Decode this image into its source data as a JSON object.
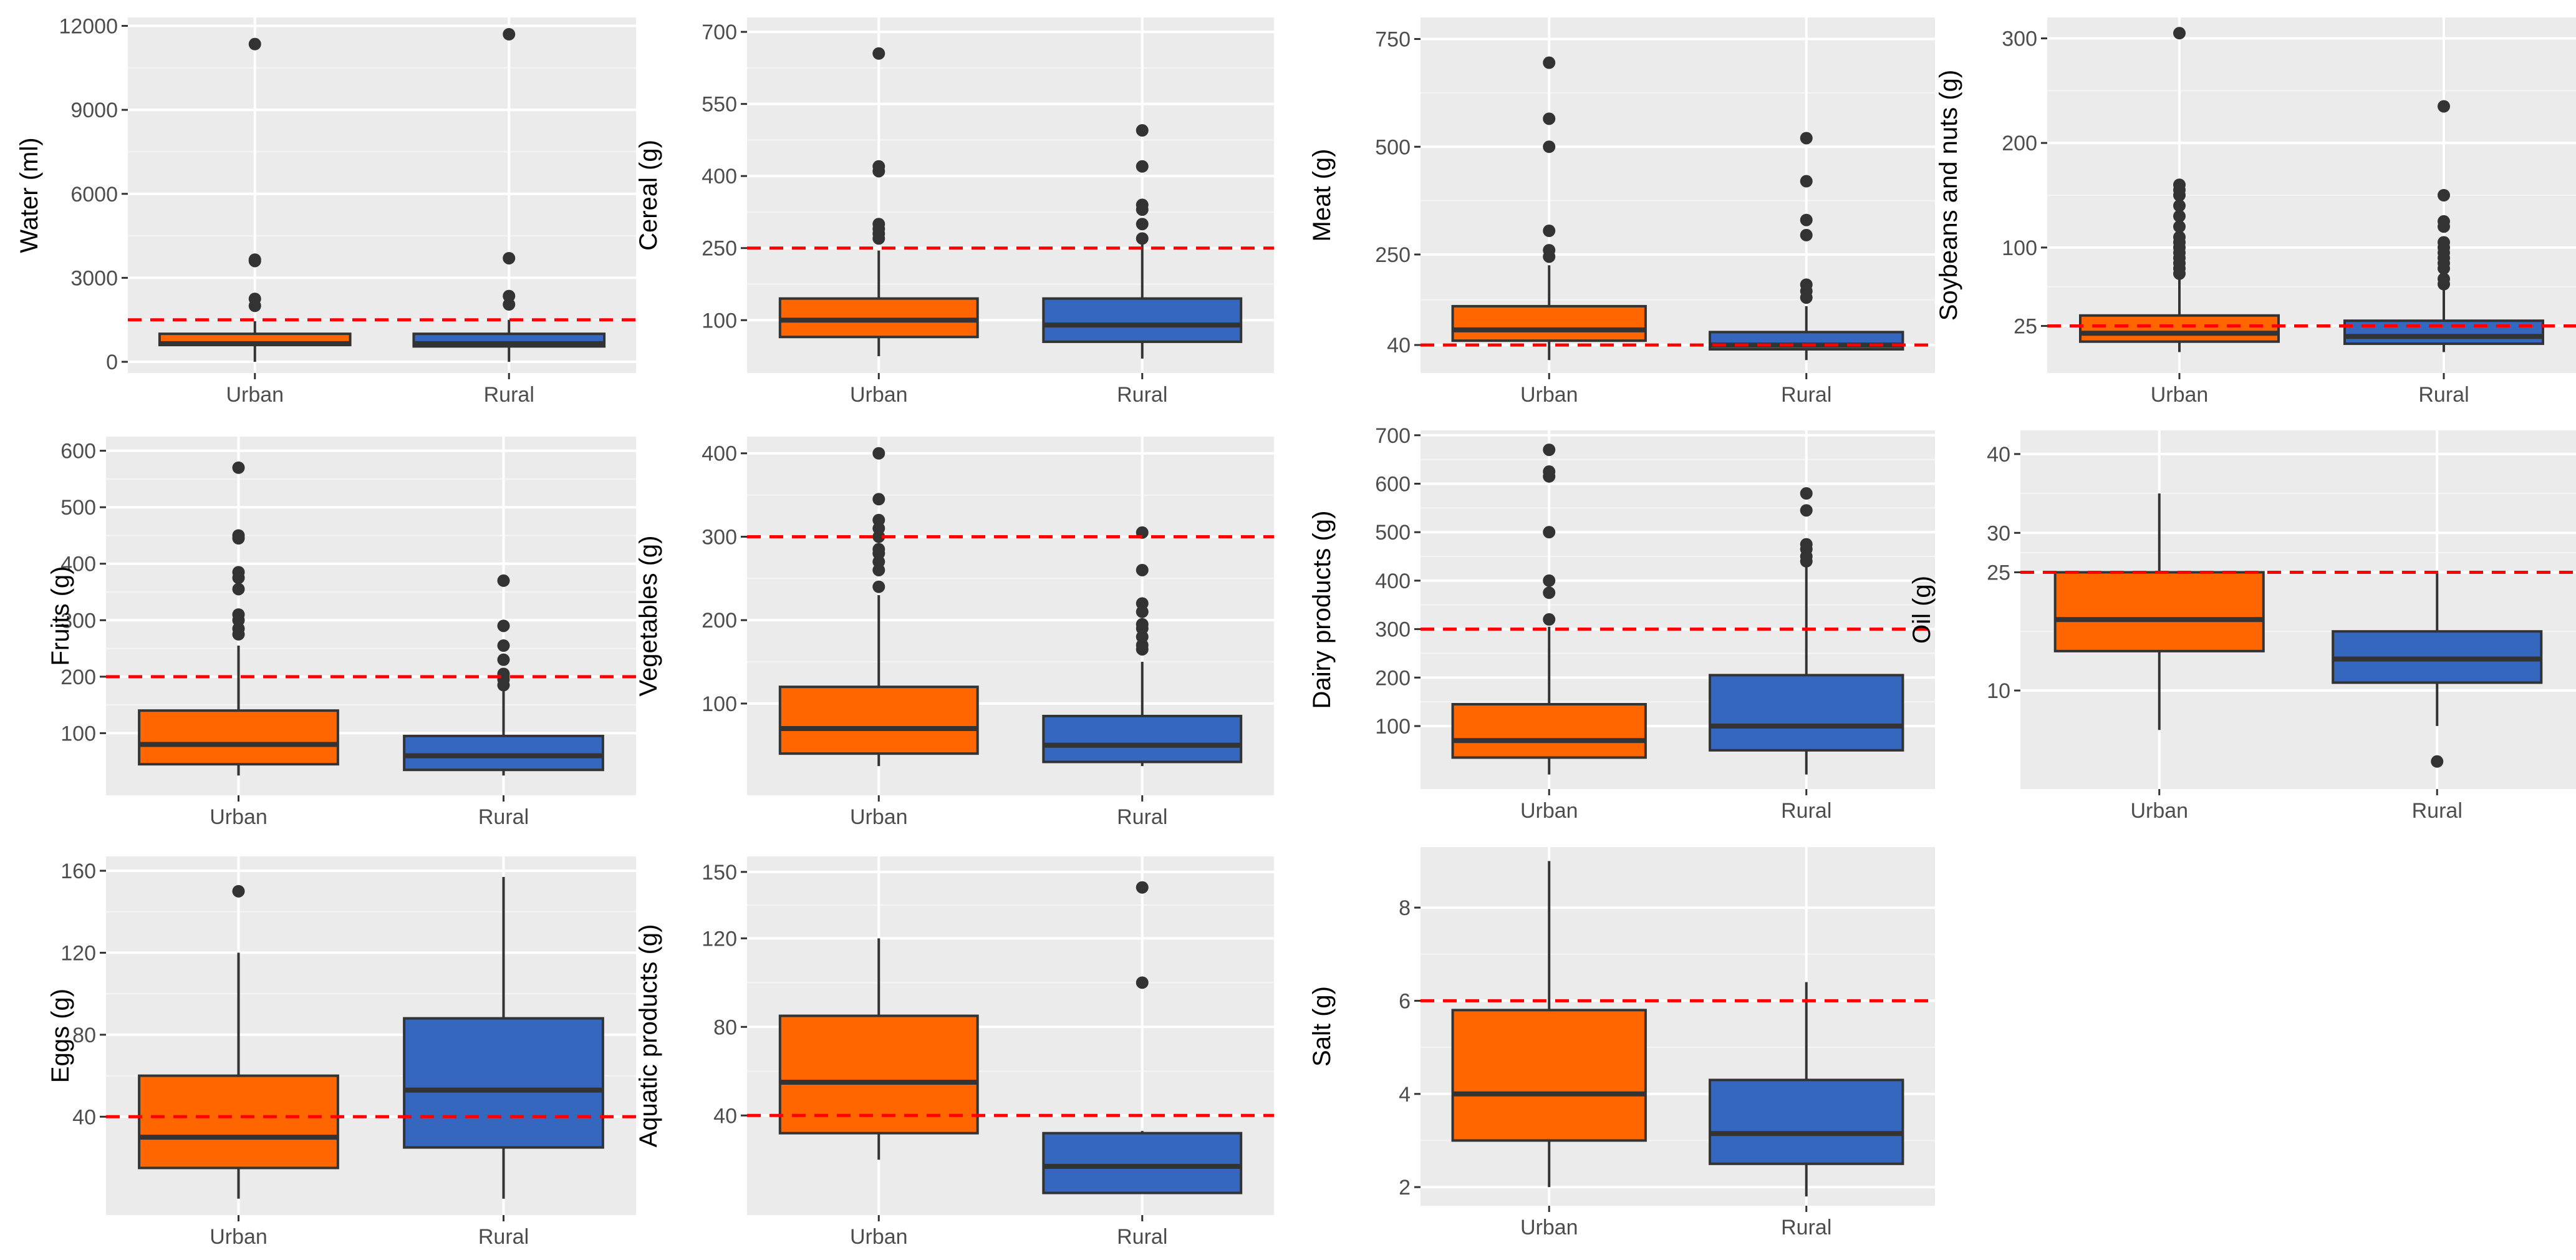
{
  "figure": {
    "colors": {
      "Urban": "#FF6600",
      "Rural": "#3467BD",
      "reference": "#FF0000"
    }
  },
  "chart_data": [
    {
      "type": "box",
      "ylabel": "Water (ml)",
      "categories": [
        "Urban",
        "Rural"
      ],
      "yticks": [
        0,
        3000,
        6000,
        9000,
        12000
      ],
      "yticklabels": [
        "0",
        "3000",
        "6000",
        "9000",
        "12000"
      ],
      "ylim": [
        -400,
        12300
      ],
      "reference": 1500,
      "series": [
        {
          "name": "Urban",
          "min": 0,
          "q1": 600,
          "median": 650,
          "q3": 1000,
          "max": 1450,
          "outliers": [
            2000,
            2250,
            3600,
            3650,
            11350
          ]
        },
        {
          "name": "Rural",
          "min": 0,
          "q1": 550,
          "median": 650,
          "q3": 1000,
          "max": 1500,
          "outliers": [
            2050,
            2350,
            3700,
            11700
          ]
        }
      ]
    },
    {
      "type": "box",
      "ylabel": "Cereal (g)",
      "categories": [
        "Urban",
        "Rural"
      ],
      "yticks": [
        100,
        250,
        400,
        550,
        700
      ],
      "yticklabels": [
        "100",
        "250",
        "400",
        "550",
        "700"
      ],
      "ylim": [
        -10,
        730
      ],
      "reference": 250,
      "series": [
        {
          "name": "Urban",
          "min": 25,
          "q1": 65,
          "median": 100,
          "q3": 145,
          "max": 245,
          "outliers": [
            270,
            280,
            290,
            300,
            410,
            420,
            655
          ]
        },
        {
          "name": "Rural",
          "min": 20,
          "q1": 55,
          "median": 90,
          "q3": 145,
          "max": 260,
          "outliers": [
            270,
            300,
            330,
            340,
            420,
            495
          ]
        }
      ]
    },
    {
      "type": "box",
      "ylabel": "Meat (g)",
      "categories": [
        "Urban",
        "Rural"
      ],
      "yticks": [
        40,
        250,
        500,
        750
      ],
      "yticklabels": [
        "40",
        "250",
        "500",
        "750"
      ],
      "ylim": [
        -25,
        800
      ],
      "reference": 40,
      "series": [
        {
          "name": "Urban",
          "min": 5,
          "q1": 50,
          "median": 75,
          "q3": 130,
          "max": 225,
          "outliers": [
            245,
            260,
            305,
            500,
            565,
            695
          ]
        },
        {
          "name": "Rural",
          "min": 5,
          "q1": 30,
          "median": 40,
          "q3": 70,
          "max": 130,
          "outliers": [
            150,
            165,
            180,
            295,
            330,
            420,
            520
          ]
        }
      ]
    },
    {
      "type": "box",
      "ylabel": "Soybeans and nuts (g)",
      "categories": [
        "Urban",
        "Rural"
      ],
      "yticks": [
        25,
        100,
        200,
        300
      ],
      "yticklabels": [
        "25",
        "100",
        "200",
        "300"
      ],
      "ylim": [
        -20,
        320
      ],
      "reference": 25,
      "series": [
        {
          "name": "Urban",
          "min": 0,
          "q1": 10,
          "median": 18,
          "q3": 35,
          "max": 70,
          "outliers": [
            75,
            80,
            85,
            90,
            95,
            100,
            105,
            110,
            120,
            130,
            140,
            150,
            155,
            160,
            305
          ]
        },
        {
          "name": "Rural",
          "min": 0,
          "q1": 8,
          "median": 15,
          "q3": 30,
          "max": 60,
          "outliers": [
            65,
            70,
            80,
            85,
            90,
            95,
            100,
            105,
            120,
            125,
            150,
            235
          ]
        }
      ]
    },
    {
      "type": "box",
      "ylabel": "Fruits (g)",
      "categories": [
        "Urban",
        "Rural"
      ],
      "yticks": [
        100,
        200,
        300,
        400,
        500,
        600
      ],
      "yticklabels": [
        "100",
        "200",
        "300",
        "400",
        "500",
        "600"
      ],
      "ylim": [
        -10,
        625
      ],
      "reference": 200,
      "series": [
        {
          "name": "Urban",
          "min": 25,
          "q1": 45,
          "median": 80,
          "q3": 140,
          "max": 255,
          "outliers": [
            275,
            285,
            300,
            310,
            355,
            375,
            385,
            445,
            450,
            570
          ]
        },
        {
          "name": "Rural",
          "min": 25,
          "q1": 35,
          "median": 60,
          "q3": 95,
          "max": 175,
          "outliers": [
            185,
            195,
            200,
            205,
            230,
            255,
            290,
            370
          ]
        }
      ]
    },
    {
      "type": "box",
      "ylabel": "Vegetables (g)",
      "categories": [
        "Urban",
        "Rural"
      ],
      "yticks": [
        100,
        200,
        300,
        400
      ],
      "yticklabels": [
        "100",
        "200",
        "300",
        "400"
      ],
      "ylim": [
        -10,
        420
      ],
      "reference": 300,
      "series": [
        {
          "name": "Urban",
          "min": 25,
          "q1": 40,
          "median": 70,
          "q3": 120,
          "max": 230,
          "outliers": [
            240,
            260,
            270,
            280,
            285,
            300,
            310,
            320,
            345,
            400
          ]
        },
        {
          "name": "Rural",
          "min": 25,
          "q1": 30,
          "median": 50,
          "q3": 85,
          "max": 150,
          "outliers": [
            165,
            170,
            180,
            190,
            195,
            210,
            220,
            260,
            305
          ]
        }
      ]
    },
    {
      "type": "box",
      "ylabel": "Dairy products (g)",
      "categories": [
        "Urban",
        "Rural"
      ],
      "yticks": [
        100,
        200,
        300,
        400,
        500,
        600,
        700
      ],
      "yticklabels": [
        "100",
        "200",
        "300",
        "400",
        "500",
        "600",
        "700"
      ],
      "ylim": [
        -30,
        710
      ],
      "reference": 300,
      "series": [
        {
          "name": "Urban",
          "min": 0,
          "q1": 35,
          "median": 70,
          "q3": 145,
          "max": 305,
          "outliers": [
            320,
            375,
            400,
            500,
            615,
            625,
            670
          ]
        },
        {
          "name": "Rural",
          "min": 0,
          "q1": 50,
          "median": 100,
          "q3": 205,
          "max": 430,
          "outliers": [
            440,
            450,
            465,
            475,
            545,
            580
          ]
        }
      ]
    },
    {
      "type": "box",
      "ylabel": "Oil (g)",
      "categories": [
        "Urban",
        "Rural"
      ],
      "yticks": [
        10,
        25,
        30,
        40
      ],
      "yticklabels": [
        "10",
        "25",
        "30",
        "40"
      ],
      "ylim": [
        -2.5,
        43
      ],
      "reference": 25,
      "series": [
        {
          "name": "Urban",
          "min": 5,
          "q1": 15,
          "median": 19,
          "q3": 25,
          "max": 35,
          "outliers": []
        },
        {
          "name": "Rural",
          "min": 5.5,
          "q1": 11,
          "median": 14,
          "q3": 17.5,
          "max": 25,
          "outliers": [
            1
          ]
        }
      ]
    },
    {
      "type": "box",
      "ylabel": "Eggs (g)",
      "categories": [
        "Urban",
        "Rural"
      ],
      "yticks": [
        40,
        80,
        120,
        160
      ],
      "yticklabels": [
        "40",
        "80",
        "120",
        "160"
      ],
      "ylim": [
        -8,
        167
      ],
      "reference": 40,
      "series": [
        {
          "name": "Urban",
          "min": 0,
          "q1": 15,
          "median": 30,
          "q3": 60,
          "max": 120,
          "outliers": [
            150
          ]
        },
        {
          "name": "Rural",
          "min": 0,
          "q1": 25,
          "median": 53,
          "q3": 88,
          "max": 157,
          "outliers": []
        }
      ]
    },
    {
      "type": "box",
      "ylabel": "Aquatic products (g)",
      "categories": [
        "Urban",
        "Rural"
      ],
      "yticks": [
        40,
        80,
        120,
        150
      ],
      "yticklabels": [
        "40",
        "80",
        "120",
        "150"
      ],
      "ylim": [
        -5,
        157
      ],
      "reference": 40,
      "series": [
        {
          "name": "Urban",
          "min": 20,
          "q1": 32,
          "median": 55,
          "q3": 85,
          "max": 120,
          "outliers": []
        },
        {
          "name": "Rural",
          "min": 5,
          "q1": 5,
          "median": 17,
          "q3": 32,
          "max": 33,
          "outliers": [
            100,
            143
          ]
        }
      ]
    },
    {
      "type": "box",
      "ylabel": "Salt (g)",
      "categories": [
        "Urban",
        "Rural"
      ],
      "yticks": [
        2,
        4,
        6,
        8
      ],
      "yticklabels": [
        "2",
        "4",
        "6",
        "8"
      ],
      "ylim": [
        1.6,
        9.3
      ],
      "reference": 6,
      "series": [
        {
          "name": "Urban",
          "min": 2,
          "q1": 3,
          "median": 4,
          "q3": 5.8,
          "max": 9,
          "outliers": []
        },
        {
          "name": "Rural",
          "min": 1.8,
          "q1": 2.5,
          "median": 3.15,
          "q3": 4.3,
          "max": 6.4,
          "outliers": []
        }
      ]
    }
  ]
}
